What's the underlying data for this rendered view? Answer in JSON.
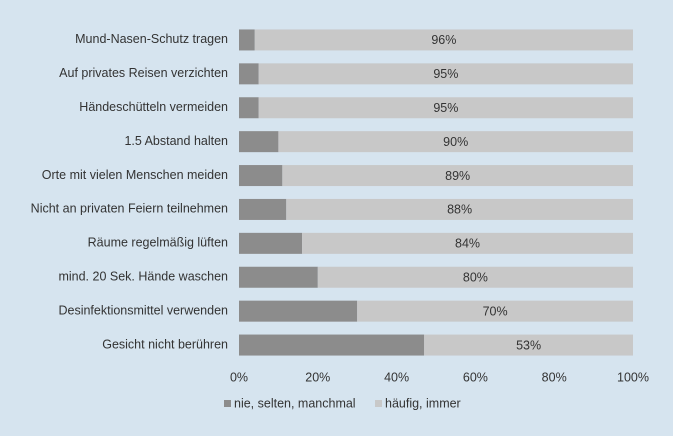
{
  "chart_data": {
    "type": "stacked-bar-horizontal",
    "categories": [
      "Mund-Nasen-Schutz tragen",
      "Auf privates Reisen verzichten",
      "Händeschütteln vermeiden",
      "1.5 Abstand halten",
      "Orte mit vielen Menschen meiden",
      "Nicht an privaten Feiern teilnehmen",
      "Räume regelmäßig lüften",
      "mind. 20 Sek. Hände waschen",
      "Desinfektionsmittel verwenden",
      "Gesicht nicht berühren"
    ],
    "series": [
      {
        "name": "nie, selten, manchmal",
        "color": "#8c8c8c",
        "values": [
          4,
          5,
          5,
          10,
          11,
          12,
          16,
          20,
          30,
          47
        ]
      },
      {
        "name": "häufig, immer",
        "color": "#c8c8c8",
        "values": [
          96,
          95,
          95,
          90,
          89,
          88,
          84,
          80,
          70,
          53
        ],
        "value_labels": [
          "96%",
          "95%",
          "95%",
          "90%",
          "89%",
          "88%",
          "84%",
          "80%",
          "70%",
          "53%"
        ]
      }
    ],
    "xlim": [
      0,
      100
    ],
    "xticks": [
      {
        "value": 0,
        "label": "0%"
      },
      {
        "value": 20,
        "label": "20%"
      },
      {
        "value": 40,
        "label": "40%"
      },
      {
        "value": 60,
        "label": "60%"
      },
      {
        "value": 80,
        "label": "80%"
      },
      {
        "value": 100,
        "label": "100%"
      }
    ],
    "legend": "bottom"
  }
}
